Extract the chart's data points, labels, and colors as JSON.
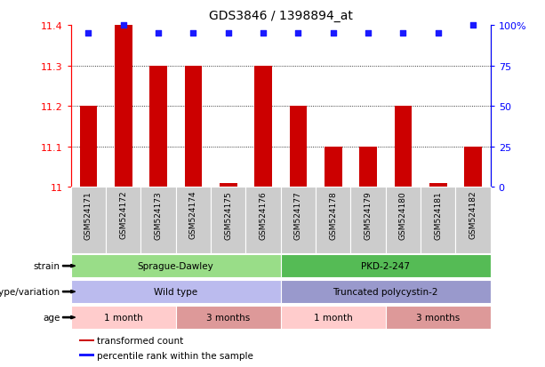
{
  "title": "GDS3846 / 1398894_at",
  "samples": [
    "GSM524171",
    "GSM524172",
    "GSM524173",
    "GSM524174",
    "GSM524175",
    "GSM524176",
    "GSM524177",
    "GSM524178",
    "GSM524179",
    "GSM524180",
    "GSM524181",
    "GSM524182"
  ],
  "bar_values": [
    11.2,
    11.4,
    11.3,
    11.3,
    11.01,
    11.3,
    11.2,
    11.1,
    11.1,
    11.2,
    11.01,
    11.1
  ],
  "percentile_values": [
    95,
    100,
    95,
    95,
    95,
    95,
    95,
    95,
    95,
    95,
    95,
    100
  ],
  "ylim_left": [
    11.0,
    11.4
  ],
  "ylim_right": [
    0,
    100
  ],
  "yticks_left": [
    11.0,
    11.1,
    11.2,
    11.3,
    11.4
  ],
  "ytick_labels_left": [
    "11",
    "11.1",
    "11.2",
    "11.3",
    "11.4"
  ],
  "yticks_right": [
    0,
    25,
    50,
    75,
    100
  ],
  "ytick_labels_right": [
    "0",
    "25",
    "50",
    "75",
    "100%"
  ],
  "bar_color": "#cc0000",
  "dot_color": "#1a1aff",
  "background_color": "#ffffff",
  "sample_box_color": "#cccccc",
  "annotation_rows": [
    {
      "label": "strain",
      "segments": [
        {
          "text": "Sprague-Dawley",
          "start": 0,
          "end": 6,
          "color": "#99dd88"
        },
        {
          "text": "PKD-2-247",
          "start": 6,
          "end": 12,
          "color": "#55bb55"
        }
      ]
    },
    {
      "label": "genotype/variation",
      "segments": [
        {
          "text": "Wild type",
          "start": 0,
          "end": 6,
          "color": "#bbbbee"
        },
        {
          "text": "Truncated polycystin-2",
          "start": 6,
          "end": 12,
          "color": "#9999cc"
        }
      ]
    },
    {
      "label": "age",
      "segments": [
        {
          "text": "1 month",
          "start": 0,
          "end": 3,
          "color": "#ffcccc"
        },
        {
          "text": "3 months",
          "start": 3,
          "end": 6,
          "color": "#dd9999"
        },
        {
          "text": "1 month",
          "start": 6,
          "end": 9,
          "color": "#ffcccc"
        },
        {
          "text": "3 months",
          "start": 9,
          "end": 12,
          "color": "#dd9999"
        }
      ]
    }
  ],
  "legend": [
    {
      "color": "#cc0000",
      "label": "transformed count"
    },
    {
      "color": "#1a1aff",
      "label": "percentile rank within the sample"
    }
  ]
}
